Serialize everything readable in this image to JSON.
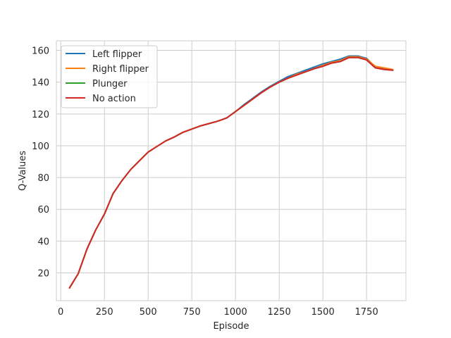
{
  "chart_data": {
    "type": "line",
    "title": "",
    "xlabel": "Episode",
    "ylabel": "Q-Values",
    "xlim": [
      -25,
      1975
    ],
    "ylim": [
      2.5,
      166
    ],
    "xticks": [
      0,
      250,
      500,
      750,
      1000,
      1250,
      1500,
      1750
    ],
    "yticks": [
      20,
      40,
      60,
      80,
      100,
      120,
      140,
      160
    ],
    "grid": true,
    "legend_position": "top-left",
    "x": [
      50,
      100,
      150,
      200,
      250,
      300,
      350,
      400,
      450,
      500,
      550,
      600,
      650,
      700,
      750,
      800,
      850,
      900,
      950,
      1000,
      1050,
      1100,
      1150,
      1200,
      1250,
      1300,
      1350,
      1400,
      1450,
      1500,
      1550,
      1600,
      1650,
      1700,
      1750,
      1800,
      1850,
      1900
    ],
    "series": [
      {
        "name": "Left flipper",
        "color": "#1f77b4",
        "values": [
          10.5,
          19.5,
          35,
          47,
          57,
          70,
          78,
          85,
          90.5,
          96,
          99.5,
          103,
          105.5,
          108.5,
          110.5,
          112.5,
          114,
          115.5,
          117.5,
          121.5,
          126,
          130,
          134,
          137.5,
          140.5,
          143.5,
          145.5,
          147.5,
          149.5,
          151.5,
          153,
          154.5,
          156.5,
          156.5,
          155,
          149.5,
          148.5,
          147.5
        ]
      },
      {
        "name": "Right flipper",
        "color": "#ff7f0e",
        "values": [
          10.5,
          19.5,
          35,
          47,
          57,
          70,
          78,
          85,
          90.5,
          96,
          99.5,
          103,
          105.5,
          108.5,
          110.5,
          112.5,
          114,
          115.5,
          117.5,
          121.5,
          125.5,
          129.5,
          133.5,
          137,
          140,
          142.5,
          145,
          146.5,
          148.5,
          150.5,
          152.5,
          153.5,
          156,
          156,
          154.5,
          150,
          149,
          148
        ]
      },
      {
        "name": "Plunger",
        "color": "#2ca02c",
        "values": [
          10.5,
          19.5,
          35,
          47,
          57,
          70,
          78,
          85,
          90.5,
          96,
          99.5,
          103,
          105.5,
          108.5,
          110.5,
          112.5,
          114,
          115.5,
          117.5,
          121.5,
          125.5,
          129.5,
          133.5,
          137,
          140,
          142.5,
          144.5,
          146.5,
          148.5,
          150,
          152,
          153,
          155.5,
          155.5,
          154,
          149,
          148,
          147.5
        ]
      },
      {
        "name": "No action",
        "color": "#d62728",
        "values": [
          10.5,
          19.5,
          35,
          47,
          57,
          70,
          78,
          85,
          90.5,
          96,
          99.5,
          103,
          105.5,
          108.5,
          110.5,
          112.5,
          114,
          115.5,
          117.5,
          121.5,
          125.5,
          129.5,
          133.5,
          137,
          140,
          142.5,
          144.5,
          146.5,
          148.5,
          150,
          152,
          153,
          155.5,
          155.5,
          154,
          149,
          148,
          147.5
        ]
      }
    ]
  }
}
